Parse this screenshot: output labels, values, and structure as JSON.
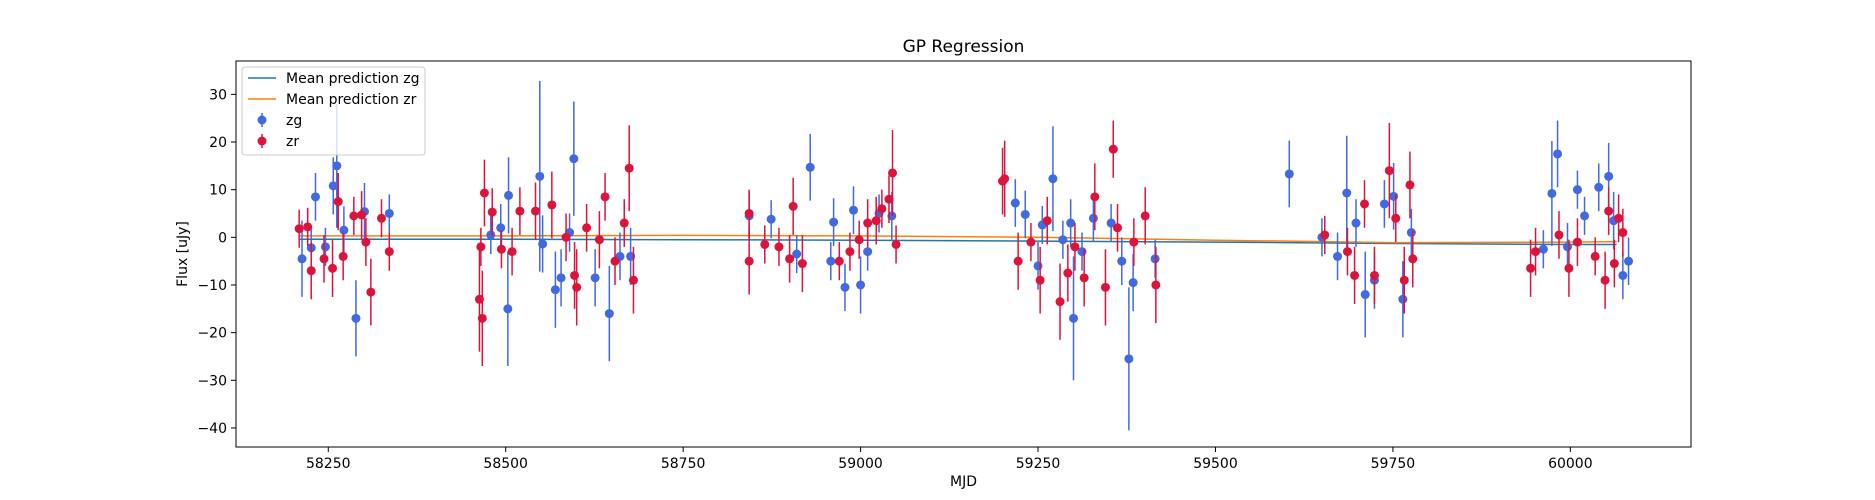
{
  "chart_data": {
    "type": "scatter",
    "title": "GP Regression",
    "xlabel": "MJD",
    "ylabel": "Flux [uJy]",
    "xlim": [
      58120,
      60170
    ],
    "ylim": [
      -44,
      37
    ],
    "xticks": [
      58250,
      58500,
      58750,
      59000,
      59250,
      59500,
      59750,
      60000
    ],
    "yticks": [
      -40,
      -30,
      -20,
      -10,
      0,
      10,
      20,
      30
    ],
    "grid": false,
    "legend_position": "top-left",
    "legend": [
      {
        "label": "Mean prediction zg",
        "kind": "line",
        "color": "#1f77b4"
      },
      {
        "label": "Mean prediction zr",
        "kind": "line",
        "color": "#ff7f0e"
      },
      {
        "label": "zg",
        "kind": "errorbar",
        "color": "#4169e1"
      },
      {
        "label": "zr",
        "kind": "errorbar",
        "color": "#dc143c"
      }
    ],
    "mean_lines": [
      {
        "name": "Mean prediction zg",
        "color": "#1f77b4",
        "x": [
          58210,
          58500,
          58750,
          59000,
          59250,
          59500,
          59750,
          60000,
          60065
        ],
        "y": [
          -0.4,
          -0.4,
          -0.5,
          -0.6,
          -0.8,
          -1.0,
          -1.3,
          -1.5,
          -1.5
        ]
      },
      {
        "name": "Mean prediction zr",
        "color": "#ff7f0e",
        "x": [
          58210,
          58500,
          58750,
          59000,
          59250,
          59500,
          59750,
          60000,
          60065
        ],
        "y": [
          0.3,
          0.3,
          0.4,
          0.3,
          0.0,
          -0.6,
          -1.1,
          -1.0,
          -0.9
        ]
      }
    ],
    "series": [
      {
        "name": "zg",
        "color": "#4169e1",
        "points": [
          [
            58213,
            -4.5,
            8
          ],
          [
            58226,
            -2.2,
            4
          ],
          [
            58232,
            8.5,
            5
          ],
          [
            58246,
            -2,
            4
          ],
          [
            58257,
            10.8,
            6
          ],
          [
            58262,
            15,
            13
          ],
          [
            58272,
            1.5,
            5
          ],
          [
            58289,
            -17,
            8
          ],
          [
            58301,
            5.4,
            6
          ],
          [
            58336,
            5,
            4
          ],
          [
            58479,
            0.5,
            4
          ],
          [
            58493,
            2,
            5
          ],
          [
            58503,
            -15,
            12
          ],
          [
            58504,
            8.8,
            8
          ],
          [
            58548,
            12.8,
            20
          ],
          [
            58552,
            -1.4,
            6
          ],
          [
            58570,
            -11,
            8
          ],
          [
            58578,
            -8.5,
            6
          ],
          [
            58590,
            1,
            4
          ],
          [
            58596,
            16.5,
            12
          ],
          [
            58626,
            -8.5,
            6
          ],
          [
            58646,
            -16,
            10
          ],
          [
            58661,
            -4,
            5
          ],
          [
            58676,
            -4,
            6
          ],
          [
            58843,
            4.5,
            5
          ],
          [
            58874,
            3.8,
            4
          ],
          [
            58910,
            -3.5,
            4
          ],
          [
            58929,
            14.7,
            7
          ],
          [
            58958,
            -5,
            4
          ],
          [
            58962,
            3.2,
            5
          ],
          [
            58978,
            -10.5,
            5
          ],
          [
            58990,
            5.7,
            5
          ],
          [
            59000,
            -10,
            6
          ],
          [
            59010,
            -3,
            4
          ],
          [
            59026,
            5,
            4
          ],
          [
            59044,
            4.5,
            5
          ],
          [
            59218,
            7.2,
            5
          ],
          [
            59232,
            4.8,
            5
          ],
          [
            59250,
            -6,
            5
          ],
          [
            59256,
            2.6,
            4
          ],
          [
            59271,
            12.3,
            11
          ],
          [
            59285,
            -0.5,
            4
          ],
          [
            59296,
            3,
            5
          ],
          [
            59300,
            -17,
            13
          ],
          [
            59312,
            -3,
            4
          ],
          [
            59328,
            4,
            5
          ],
          [
            59353,
            3,
            4
          ],
          [
            59368,
            -5,
            5
          ],
          [
            59378,
            -25.5,
            15
          ],
          [
            59384,
            -9.5,
            6
          ],
          [
            59415,
            -4.5,
            4
          ],
          [
            59604,
            13.3,
            7
          ],
          [
            59650,
            0,
            4
          ],
          [
            59672,
            -4,
            5
          ],
          [
            59685,
            9.3,
            12
          ],
          [
            59698,
            3,
            5
          ],
          [
            59711,
            -12,
            9
          ],
          [
            59724,
            -9,
            6
          ],
          [
            59738,
            7,
            5
          ],
          [
            59751,
            8.6,
            7
          ],
          [
            59764,
            -13,
            8
          ],
          [
            59776,
            1,
            5
          ],
          [
            59962,
            -2.5,
            4
          ],
          [
            59974,
            9.2,
            11
          ],
          [
            59982,
            17.5,
            7
          ],
          [
            59996,
            -2,
            5
          ],
          [
            60010,
            10,
            4
          ],
          [
            60020,
            4.5,
            4
          ],
          [
            60040,
            10.5,
            5
          ],
          [
            60054,
            12.8,
            7
          ],
          [
            60061,
            3.5,
            6
          ],
          [
            60074,
            -8,
            5
          ],
          [
            60082,
            -5,
            5
          ]
        ]
      },
      {
        "name": "zr",
        "color": "#dc143c",
        "points": [
          [
            58209,
            1.8,
            4
          ],
          [
            58221,
            2.2,
            4
          ],
          [
            58226,
            -7,
            6
          ],
          [
            58244,
            -4.5,
            5
          ],
          [
            58256,
            -6.5,
            6
          ],
          [
            58264,
            7.5,
            6
          ],
          [
            58271,
            -4,
            5
          ],
          [
            58286,
            4.5,
            4
          ],
          [
            58297,
            4.7,
            5
          ],
          [
            58303,
            -1,
            5
          ],
          [
            58310,
            -11.5,
            7
          ],
          [
            58325,
            4,
            4
          ],
          [
            58336,
            -3,
            4
          ],
          [
            58463,
            -13,
            11
          ],
          [
            58465,
            -2,
            4
          ],
          [
            58467,
            -17,
            10
          ],
          [
            58470,
            9.3,
            7
          ],
          [
            58481,
            5.3,
            5
          ],
          [
            58494,
            -2.5,
            4
          ],
          [
            58509,
            -3,
            5
          ],
          [
            58520,
            5.5,
            5
          ],
          [
            58542,
            5.5,
            6
          ],
          [
            58565,
            6.8,
            7
          ],
          [
            58585,
            0,
            5
          ],
          [
            58597,
            -8,
            7
          ],
          [
            58600,
            -10.5,
            8
          ],
          [
            58614,
            2,
            5
          ],
          [
            58632,
            -0.5,
            6
          ],
          [
            58640,
            8.5,
            5
          ],
          [
            58654,
            -5,
            5
          ],
          [
            58667,
            3,
            5
          ],
          [
            58674,
            14.5,
            9
          ],
          [
            58680,
            -9,
            7
          ],
          [
            58843,
            5,
            5
          ],
          [
            58843,
            -5,
            7
          ],
          [
            58865,
            -1.5,
            4
          ],
          [
            58885,
            -2,
            4
          ],
          [
            58900,
            -4.5,
            5
          ],
          [
            58905,
            6.5,
            6
          ],
          [
            58918,
            -5.5,
            6
          ],
          [
            58970,
            -5,
            4
          ],
          [
            58985,
            -3,
            4
          ],
          [
            58998,
            -0.5,
            4
          ],
          [
            59010,
            3,
            5
          ],
          [
            59022,
            3.5,
            5
          ],
          [
            59030,
            6,
            4
          ],
          [
            59040,
            8,
            5
          ],
          [
            59045,
            13.5,
            9
          ],
          [
            59050,
            -1.5,
            4
          ],
          [
            59200,
            11.8,
            7
          ],
          [
            59203,
            12.3,
            8
          ],
          [
            59222,
            -5,
            6
          ],
          [
            59240,
            -1,
            4
          ],
          [
            59253,
            -9,
            7
          ],
          [
            59263,
            3.5,
            5
          ],
          [
            59281,
            -13.5,
            8
          ],
          [
            59292,
            -7.5,
            6
          ],
          [
            59302,
            -2,
            5
          ],
          [
            59315,
            -8.5,
            6
          ],
          [
            59330,
            8.5,
            7
          ],
          [
            59345,
            -10.5,
            8
          ],
          [
            59356,
            18.5,
            6
          ],
          [
            59362,
            2,
            5
          ],
          [
            59385,
            -1,
            5
          ],
          [
            59401,
            4.5,
            6
          ],
          [
            59416,
            -10,
            8
          ],
          [
            59654,
            0.5,
            4
          ],
          [
            59686,
            -3,
            5
          ],
          [
            59696,
            -8,
            6
          ],
          [
            59710,
            7,
            5
          ],
          [
            59724,
            -8,
            6
          ],
          [
            59745,
            14,
            10
          ],
          [
            59754,
            4,
            5
          ],
          [
            59766,
            -9,
            7
          ],
          [
            59774,
            11,
            7
          ],
          [
            59778,
            -4.5,
            6
          ],
          [
            59944,
            -6.5,
            6
          ],
          [
            59951,
            -3,
            5
          ],
          [
            59984,
            0.5,
            5
          ],
          [
            59998,
            -6.5,
            6
          ],
          [
            60010,
            -1,
            5
          ],
          [
            60035,
            -4,
            4
          ],
          [
            60049,
            -9,
            6
          ],
          [
            60054,
            5.5,
            5
          ],
          [
            60062,
            -5.5,
            5
          ],
          [
            60068,
            4,
            5
          ],
          [
            60074,
            1,
            5
          ]
        ]
      }
    ]
  }
}
